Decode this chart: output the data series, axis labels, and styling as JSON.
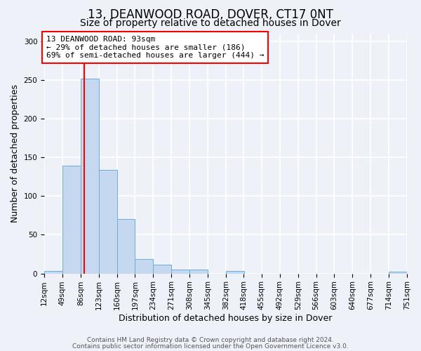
{
  "title": "13, DEANWOOD ROAD, DOVER, CT17 0NT",
  "subtitle": "Size of property relative to detached houses in Dover",
  "xlabel": "Distribution of detached houses by size in Dover",
  "ylabel": "Number of detached properties",
  "bin_edges": [
    12,
    49,
    86,
    123,
    160,
    197,
    234,
    271,
    308,
    345,
    382,
    418,
    455,
    492,
    529,
    566,
    603,
    640,
    677,
    714,
    751
  ],
  "bin_labels": [
    "12sqm",
    "49sqm",
    "86sqm",
    "123sqm",
    "160sqm",
    "197sqm",
    "234sqm",
    "271sqm",
    "308sqm",
    "345sqm",
    "382sqm",
    "418sqm",
    "455sqm",
    "492sqm",
    "529sqm",
    "566sqm",
    "603sqm",
    "640sqm",
    "677sqm",
    "714sqm",
    "751sqm"
  ],
  "bar_heights": [
    3,
    139,
    252,
    134,
    70,
    19,
    11,
    5,
    5,
    0,
    3,
    0,
    0,
    0,
    0,
    0,
    0,
    0,
    0,
    2
  ],
  "bar_color": "#c5d8f0",
  "bar_edge_color": "#6baed6",
  "vline_x": 93,
  "vline_color": "red",
  "ylim": [
    0,
    310
  ],
  "yticks": [
    0,
    50,
    100,
    150,
    200,
    250,
    300
  ],
  "annotation_text": "13 DEANWOOD ROAD: 93sqm\n← 29% of detached houses are smaller (186)\n69% of semi-detached houses are larger (444) →",
  "annotation_box_color": "white",
  "annotation_box_edge": "red",
  "footer_line1": "Contains HM Land Registry data © Crown copyright and database right 2024.",
  "footer_line2": "Contains public sector information licensed under the Open Government Licence v3.0.",
  "background_color": "#eef2f8",
  "grid_color": "white",
  "title_fontsize": 12,
  "subtitle_fontsize": 10,
  "axis_label_fontsize": 9,
  "tick_fontsize": 7.5,
  "footer_fontsize": 6.5
}
